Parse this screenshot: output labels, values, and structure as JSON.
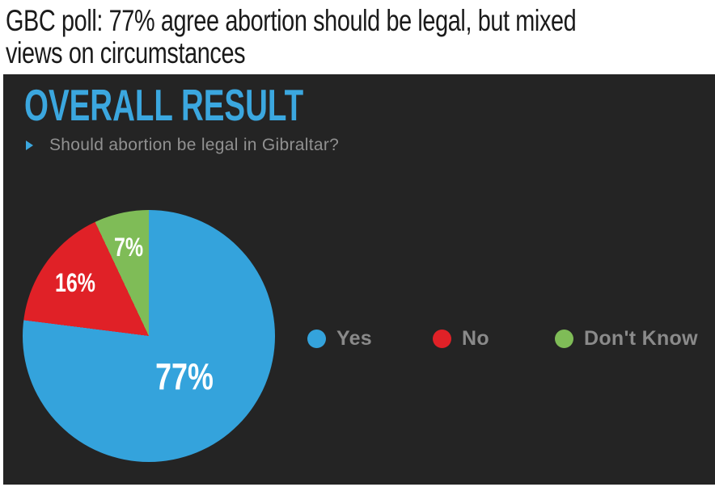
{
  "headline": {
    "text": "GBC poll: 77% agree abortion should be legal, but mixed views on circumstances",
    "line1": "GBC poll: 77% agree abortion should be legal, but mixed",
    "line2": "views on circumstances"
  },
  "panel": {
    "title": "OVERALL RESULT",
    "question": "Should abortion be legal in Gibraltar?",
    "bullet_icon": "right-triangle-icon",
    "colors": {
      "background": "#242424",
      "title": "#3ba7df",
      "question": "#919191",
      "legend_text": "#8a8a8a",
      "slice_label": "#ffffff"
    }
  },
  "chart_data": {
    "type": "pie",
    "title": "Should abortion be legal in Gibraltar?",
    "slices": [
      {
        "label": "Yes",
        "value": 77,
        "display": "77%",
        "color": "#34a3dc"
      },
      {
        "label": "No",
        "value": 16,
        "display": "16%",
        "color": "#e02127"
      },
      {
        "label": "Don't Know",
        "value": 7,
        "display": "7%",
        "color": "#7fbc57"
      }
    ],
    "start_angle_deg": 0,
    "direction": "clockwise",
    "legend_position": "right-of-pie"
  }
}
